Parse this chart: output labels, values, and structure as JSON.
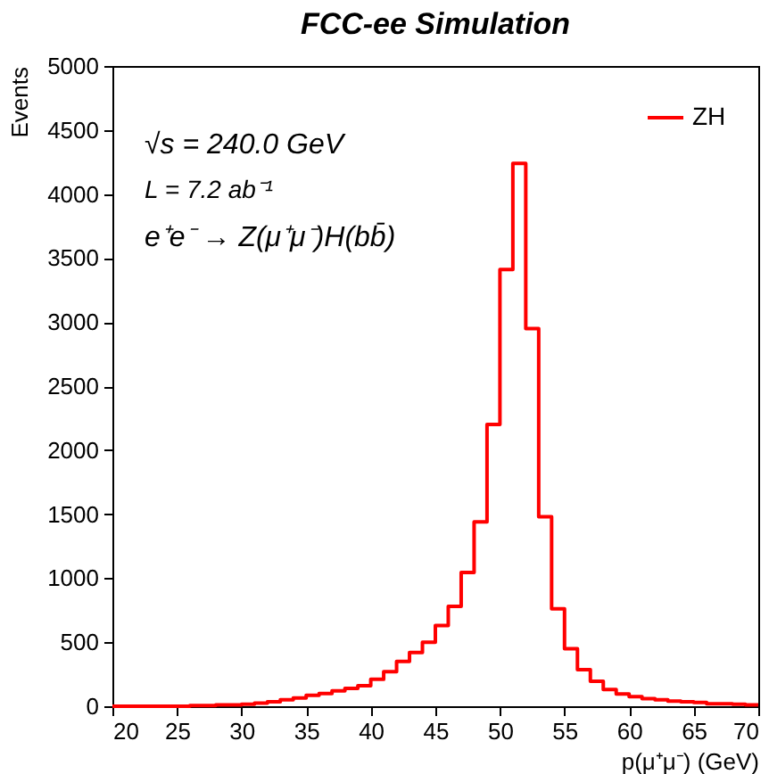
{
  "chart_data": {
    "type": "histogram",
    "title": "FCC-ee Simulation",
    "xlabel": "p(μ⁺μ⁻) (GeV)",
    "ylabel": "Events",
    "annotations": [
      "√s = 240.0 GeV",
      "L = 7.2 ab⁻¹",
      "e⁺e⁻ → Z(μ⁺μ⁻)H(bb̄)"
    ],
    "bins": [
      20,
      21,
      22,
      23,
      24,
      25,
      26,
      27,
      28,
      29,
      30,
      31,
      32,
      33,
      34,
      35,
      36,
      37,
      38,
      39,
      40,
      41,
      42,
      43,
      44,
      45,
      46,
      47,
      48,
      49,
      50,
      51,
      52,
      53,
      54,
      55,
      56,
      57,
      58,
      59,
      60,
      61,
      62,
      63,
      64,
      65,
      66,
      67,
      68,
      69,
      70
    ],
    "series": [
      {
        "name": "ZH",
        "color": "#ff0000",
        "values": [
          0,
          0,
          0,
          0,
          0,
          0,
          5,
          5,
          10,
          10,
          15,
          25,
          35,
          50,
          65,
          85,
          100,
          120,
          140,
          160,
          210,
          270,
          350,
          420,
          500,
          630,
          780,
          1045,
          1440,
          2200,
          3410,
          4240,
          2950,
          1480,
          760,
          450,
          285,
          195,
          130,
          95,
          75,
          60,
          50,
          40,
          35,
          30,
          20,
          20,
          15,
          10
        ]
      }
    ],
    "xlim": [
      20,
      70
    ],
    "ylim": [
      0,
      5000
    ],
    "xticks": [
      20,
      25,
      30,
      35,
      40,
      45,
      50,
      55,
      60,
      65,
      70
    ],
    "yticks": [
      0,
      500,
      1000,
      1500,
      2000,
      2500,
      3000,
      3500,
      4000,
      4500,
      5000
    ],
    "legend": "top right",
    "grid": false
  }
}
